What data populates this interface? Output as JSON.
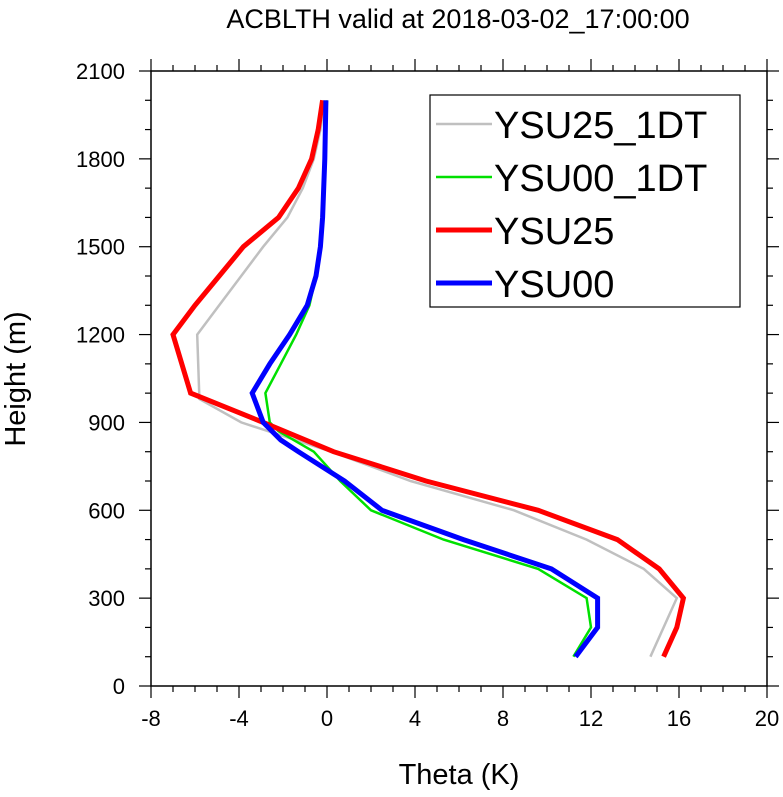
{
  "chart_data": {
    "type": "line",
    "title": "ACBLTH valid at 2018-03-02_17:00:00",
    "xlabel": "Theta (K)",
    "ylabel": "Height (m)",
    "xlim": [
      -8,
      20
    ],
    "ylim": [
      0,
      2100
    ],
    "x_ticks": [
      -8,
      -4,
      0,
      4,
      8,
      12,
      16,
      20
    ],
    "y_ticks": [
      0,
      300,
      600,
      900,
      1200,
      1500,
      1800,
      2100
    ],
    "x_tick_labels": [
      "-8",
      "-4",
      "0",
      "4",
      "8",
      "12",
      "16",
      "20"
    ],
    "y_tick_labels": [
      "0",
      "300",
      "600",
      "900",
      "1200",
      "1500",
      "1800",
      "2100"
    ],
    "grid": false,
    "legend_position": "top-right",
    "series": [
      {
        "name": "YSU25_1DT",
        "color": "#c0c0c0",
        "thick": false,
        "points": [
          [
            14.7,
            100
          ],
          [
            15.3,
            200
          ],
          [
            15.9,
            300
          ],
          [
            14.4,
            400
          ],
          [
            11.8,
            500
          ],
          [
            8.5,
            600
          ],
          [
            3.8,
            700
          ],
          [
            0.2,
            800
          ],
          [
            -3.9,
            900
          ],
          [
            -5.8,
            980
          ],
          [
            -5.9,
            1200
          ],
          [
            -4.9,
            1300
          ],
          [
            -3.9,
            1400
          ],
          [
            -2.9,
            1500
          ],
          [
            -1.8,
            1600
          ],
          [
            -1.1,
            1700
          ],
          [
            -0.6,
            1800
          ],
          [
            -0.3,
            1900
          ],
          [
            -0.1,
            2000
          ]
        ]
      },
      {
        "name": "YSU00_1DT",
        "color": "#00e000",
        "thick": false,
        "points": [
          [
            11.2,
            100
          ],
          [
            12.0,
            200
          ],
          [
            11.8,
            300
          ],
          [
            9.6,
            400
          ],
          [
            5.3,
            500
          ],
          [
            2.0,
            600
          ],
          [
            0.6,
            700
          ],
          [
            -0.6,
            800
          ],
          [
            -2.2,
            870
          ],
          [
            -2.6,
            900
          ],
          [
            -2.8,
            1000
          ],
          [
            -2.1,
            1100
          ],
          [
            -1.4,
            1200
          ],
          [
            -0.8,
            1300
          ],
          [
            -0.5,
            1400
          ],
          [
            -0.3,
            1500
          ],
          [
            -0.2,
            1600
          ],
          [
            -0.1,
            1800
          ],
          [
            0,
            2000
          ]
        ]
      },
      {
        "name": "YSU25",
        "color": "#ff0000",
        "thick": true,
        "points": [
          [
            15.3,
            100
          ],
          [
            15.9,
            200
          ],
          [
            16.2,
            300
          ],
          [
            15.1,
            400
          ],
          [
            13.2,
            500
          ],
          [
            9.6,
            600
          ],
          [
            4.5,
            700
          ],
          [
            0.3,
            800
          ],
          [
            -2.9,
            900
          ],
          [
            -6.2,
            1000
          ],
          [
            -7.0,
            1200
          ],
          [
            -6.0,
            1300
          ],
          [
            -4.9,
            1400
          ],
          [
            -3.8,
            1500
          ],
          [
            -2.2,
            1600
          ],
          [
            -1.3,
            1700
          ],
          [
            -0.7,
            1800
          ],
          [
            -0.4,
            1900
          ],
          [
            -0.2,
            2000
          ]
        ]
      },
      {
        "name": "YSU00",
        "color": "#0000ff",
        "thick": true,
        "points": [
          [
            11.3,
            100
          ],
          [
            12.3,
            200
          ],
          [
            12.3,
            300
          ],
          [
            10.2,
            400
          ],
          [
            6.2,
            500
          ],
          [
            2.5,
            600
          ],
          [
            0.8,
            700
          ],
          [
            -1.3,
            800
          ],
          [
            -2.1,
            840
          ],
          [
            -2.9,
            900
          ],
          [
            -3.4,
            1000
          ],
          [
            -2.6,
            1100
          ],
          [
            -1.7,
            1200
          ],
          [
            -0.9,
            1300
          ],
          [
            -0.5,
            1400
          ],
          [
            -0.3,
            1500
          ],
          [
            -0.2,
            1600
          ],
          [
            -0.1,
            1800
          ],
          [
            -0.05,
            2000
          ]
        ]
      }
    ]
  }
}
